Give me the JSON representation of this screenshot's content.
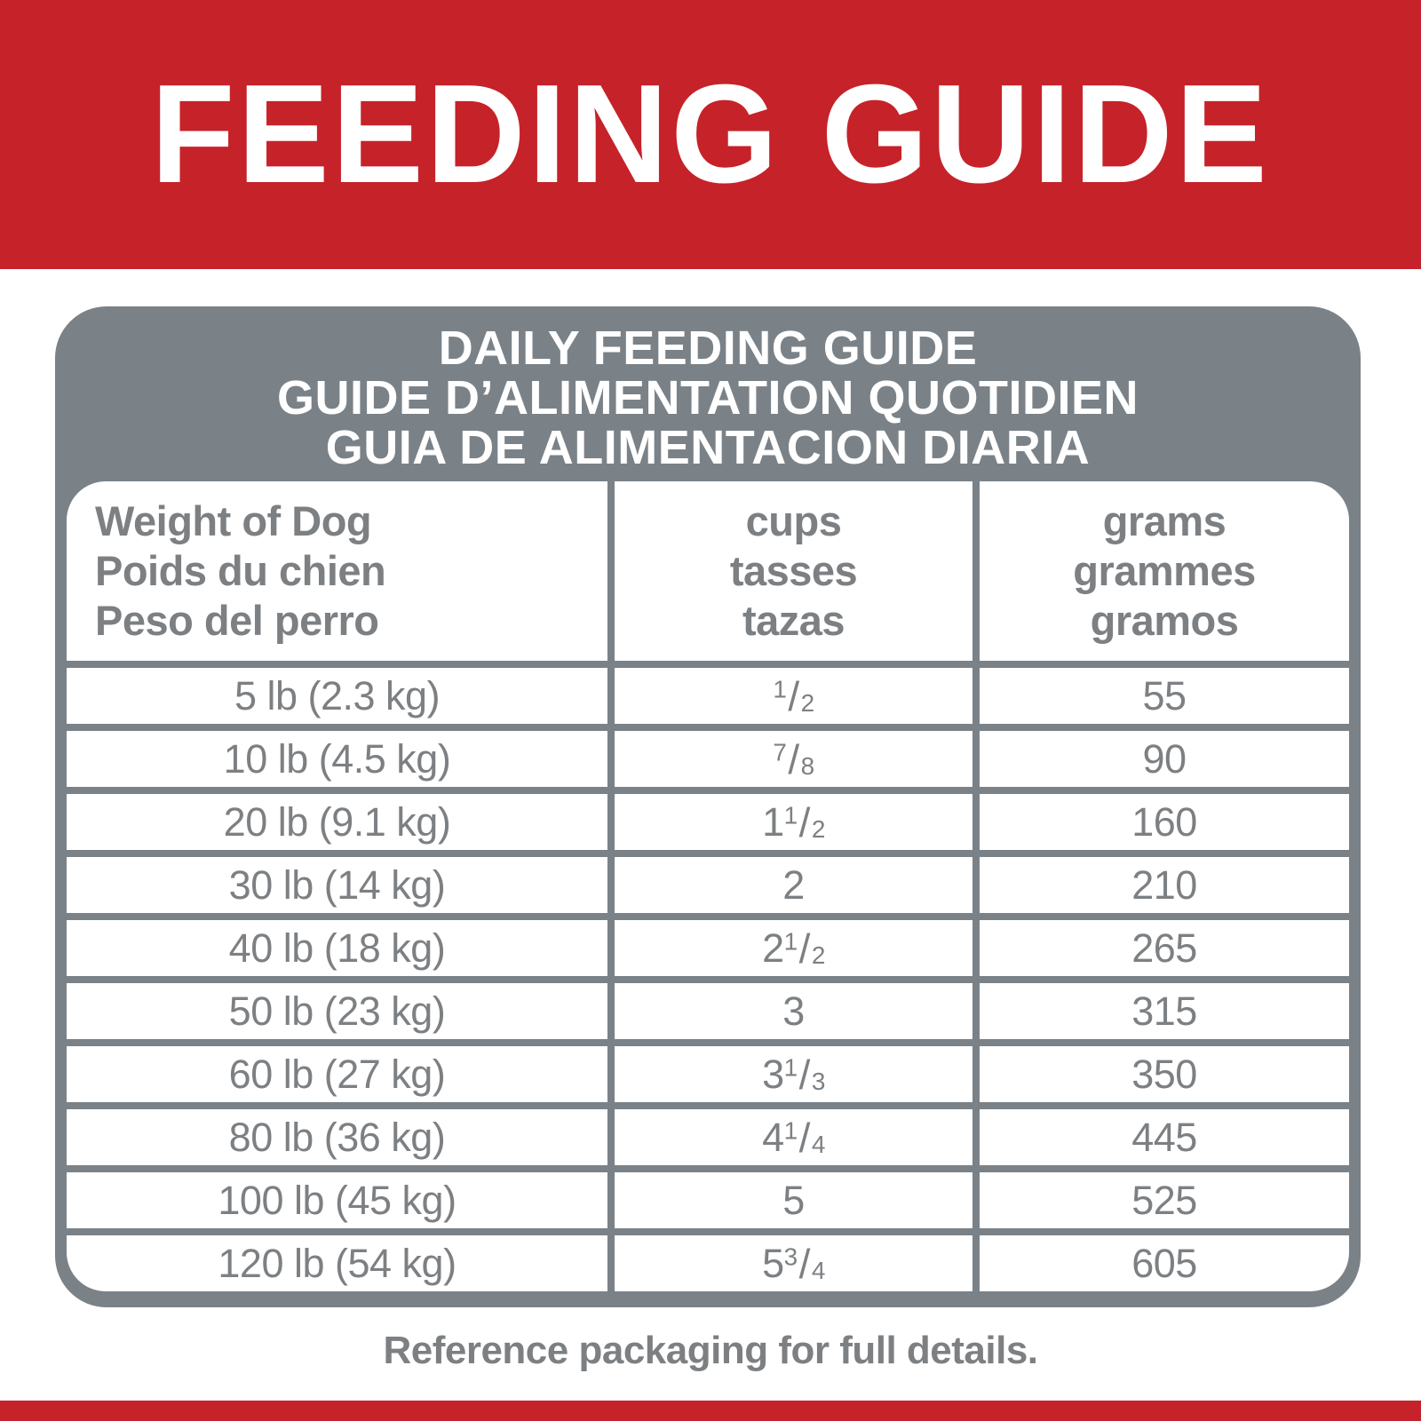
{
  "banner": {
    "title": "FEEDING GUIDE"
  },
  "panel": {
    "title_lines": [
      "DAILY FEEDING GUIDE",
      "GUIDE D’ALIMENTATION QUOTIDIEN",
      "GUIA DE ALIMENTACION DIARIA"
    ]
  },
  "table": {
    "columns": [
      {
        "id": "weight",
        "lines": [
          "Weight of Dog",
          "Poids du chien",
          "Peso del perro"
        ]
      },
      {
        "id": "cups",
        "lines": [
          "cups",
          "tasses",
          "tazas"
        ]
      },
      {
        "id": "grams",
        "lines": [
          "grams",
          "grammes",
          "gramos"
        ]
      }
    ],
    "rows": [
      {
        "weight": "5 lb (2.3 kg)",
        "cups": "1/2",
        "grams": "55"
      },
      {
        "weight": "10 lb (4.5 kg)",
        "cups": "7/8",
        "grams": "90"
      },
      {
        "weight": "20 lb (9.1 kg)",
        "cups": "1 1/2",
        "grams": "160"
      },
      {
        "weight": "30 lb (14 kg)",
        "cups": "2",
        "grams": "210"
      },
      {
        "weight": "40 lb (18 kg)",
        "cups": "2 1/2",
        "grams": "265"
      },
      {
        "weight": "50 lb (23 kg)",
        "cups": "3",
        "grams": "315"
      },
      {
        "weight": "60 lb (27 kg)",
        "cups": "3 1/3",
        "grams": "350"
      },
      {
        "weight": "80 lb (36 kg)",
        "cups": "4 1/4",
        "grams": "445"
      },
      {
        "weight": "100 lb (45 kg)",
        "cups": "5",
        "grams": "525"
      },
      {
        "weight": "120 lb (54 kg)",
        "cups": "5 3/4",
        "grams": "605"
      }
    ]
  },
  "footer": {
    "note": "Reference packaging for full details."
  },
  "colors": {
    "brand_red": "#C62229",
    "panel_gray": "#7A8288",
    "table_text_gray": "#7D8083",
    "title_text_white": "#FFFFFF"
  }
}
